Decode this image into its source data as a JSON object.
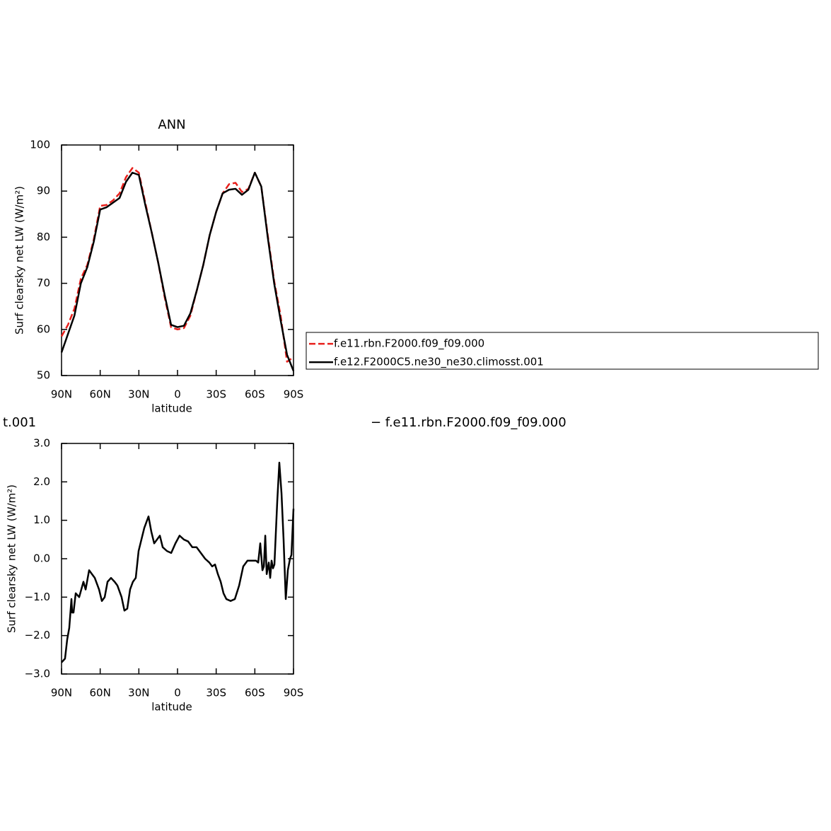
{
  "chart_data": [
    {
      "type": "line",
      "title": "ANN",
      "xlabel": "latitude",
      "ylabel": "Surf clearsky net LW (W/m²)",
      "x": [
        90,
        85,
        80,
        75,
        70,
        65,
        60,
        55,
        50,
        45,
        40,
        35,
        30,
        25,
        20,
        15,
        10,
        5,
        0,
        -5,
        -10,
        -15,
        -20,
        -25,
        -30,
        -35,
        -40,
        -45,
        -50,
        -55,
        -60,
        -65,
        -70,
        -75,
        -80,
        -85,
        -90
      ],
      "series": [
        {
          "name": "f.e11.rbn.F2000.f09_f09.000",
          "color": "#e8201c",
          "line_style": "dashed",
          "values": [
            58.5,
            61,
            64.5,
            71,
            74,
            79.5,
            86.8,
            87,
            88,
            89.5,
            93,
            95,
            94,
            87.5,
            81,
            74.5,
            67,
            60.5,
            60,
            60.3,
            63,
            68.5,
            74,
            80.5,
            85.5,
            89.5,
            91.5,
            91.8,
            89.8,
            90.5,
            94,
            91,
            80.5,
            70.5,
            63,
            53,
            54
          ]
        },
        {
          "name": "f.e12.F2000C5.ne30_ne30.climosst.001",
          "color": "#000000",
          "line_style": "solid",
          "values": [
            55,
            59,
            63,
            70,
            73.5,
            79,
            86,
            86.5,
            87.5,
            88.5,
            92,
            94,
            93.5,
            87,
            81,
            74.5,
            67.5,
            61,
            60.5,
            60.8,
            63.5,
            68.5,
            74,
            80.5,
            85.5,
            89.5,
            90.3,
            90.5,
            89.2,
            90.3,
            94,
            91,
            80,
            70,
            62,
            54.5,
            51
          ]
        }
      ],
      "xlim": [
        90,
        -90
      ],
      "xticks": [
        {
          "value": 90,
          "label": "90N"
        },
        {
          "value": 60,
          "label": "60N"
        },
        {
          "value": 30,
          "label": "30N"
        },
        0,
        {
          "value": -30,
          "label": "30S"
        },
        {
          "value": -60,
          "label": "60S"
        },
        {
          "value": -90,
          "label": "90S"
        }
      ],
      "ylim": [
        50,
        100
      ],
      "yticks": [
        50,
        60,
        70,
        80,
        90,
        100
      ],
      "legend": "right"
    },
    {
      "type": "line",
      "xlabel": "latitude",
      "ylabel": "Surf clearsky net LW (W/m²)",
      "x": [
        90,
        87.3,
        85.6,
        84,
        82.3,
        81.8,
        80.7,
        79,
        76.3,
        73,
        71.3,
        68.6,
        66.4,
        64.2,
        60.9,
        58.7,
        56.5,
        54.3,
        51.6,
        48.8,
        46.6,
        43.4,
        41.2,
        39,
        36.8,
        34.6,
        32.4,
        30.2,
        28,
        25.8,
        22.5,
        20.3,
        18.1,
        15.9,
        13.7,
        11.5,
        8.2,
        4.9,
        1.6,
        -1.6,
        -4.9,
        -8.2,
        -11.5,
        -14.8,
        -18.1,
        -21.4,
        -24.7,
        -26.9,
        -29.1,
        -31.3,
        -33.5,
        -35.7,
        -37.9,
        -41.2,
        -44.5,
        -47.8,
        -51,
        -54.3,
        -57.6,
        -60.9,
        -62.6,
        -64.2,
        -65.9,
        -67,
        -68.1,
        -69.2,
        -70.8,
        -71.9,
        -73,
        -74.1,
        -75.2,
        -77.4,
        -79,
        -80.7,
        -82.3,
        -84,
        -85.6,
        -87.3,
        -88.4,
        -90
      ],
      "series": [
        {
          "color": "#000000",
          "line_style": "solid",
          "values": [
            -2.7,
            -2.6,
            -2.1,
            -1.8,
            -1.05,
            -1.4,
            -1.4,
            -0.9,
            -1.0,
            -0.6,
            -0.8,
            -0.3,
            -0.4,
            -0.5,
            -0.8,
            -1.1,
            -1.0,
            -0.6,
            -0.5,
            -0.6,
            -0.7,
            -1.0,
            -1.35,
            -1.3,
            -0.8,
            -0.6,
            -0.5,
            0.2,
            0.5,
            0.8,
            1.1,
            0.7,
            0.4,
            0.5,
            0.6,
            0.3,
            0.2,
            0.15,
            0.4,
            0.6,
            0.5,
            0.45,
            0.3,
            0.3,
            0.15,
            0.0,
            -0.1,
            -0.2,
            -0.15,
            -0.4,
            -0.6,
            -0.9,
            -1.05,
            -1.1,
            -1.05,
            -0.7,
            -0.2,
            -0.05,
            -0.05,
            -0.05,
            -0.1,
            0.4,
            -0.3,
            -0.2,
            0.6,
            -0.4,
            -0.1,
            -0.5,
            -0.05,
            -0.25,
            -0.15,
            1.5,
            2.5,
            1.7,
            0.5,
            -1.05,
            -0.3,
            0.0,
            0.1,
            1.3
          ]
        }
      ],
      "xlim": [
        90,
        -90
      ],
      "xticks": [
        {
          "value": 90,
          "label": "90N"
        },
        {
          "value": 60,
          "label": "60N"
        },
        {
          "value": 30,
          "label": "30N"
        },
        0,
        {
          "value": -30,
          "label": "30S"
        },
        {
          "value": -60,
          "label": "60S"
        },
        {
          "value": -90,
          "label": "90S"
        }
      ],
      "ylim": [
        -3,
        3
      ],
      "yticks": [
        {
          "value": 3,
          "label": "3.0"
        },
        {
          "value": 2,
          "label": "2.0"
        },
        {
          "value": 1,
          "label": "1.0"
        },
        {
          "value": 0,
          "label": "0.0"
        },
        {
          "value": -1,
          "label": "−1.0"
        },
        {
          "value": -2,
          "label": "−2.0"
        },
        {
          "value": -3,
          "label": "−3.0"
        }
      ]
    }
  ],
  "annotations": [
    "t.001",
    "− f.e11.rbn.F2000.f09_f09.000"
  ]
}
